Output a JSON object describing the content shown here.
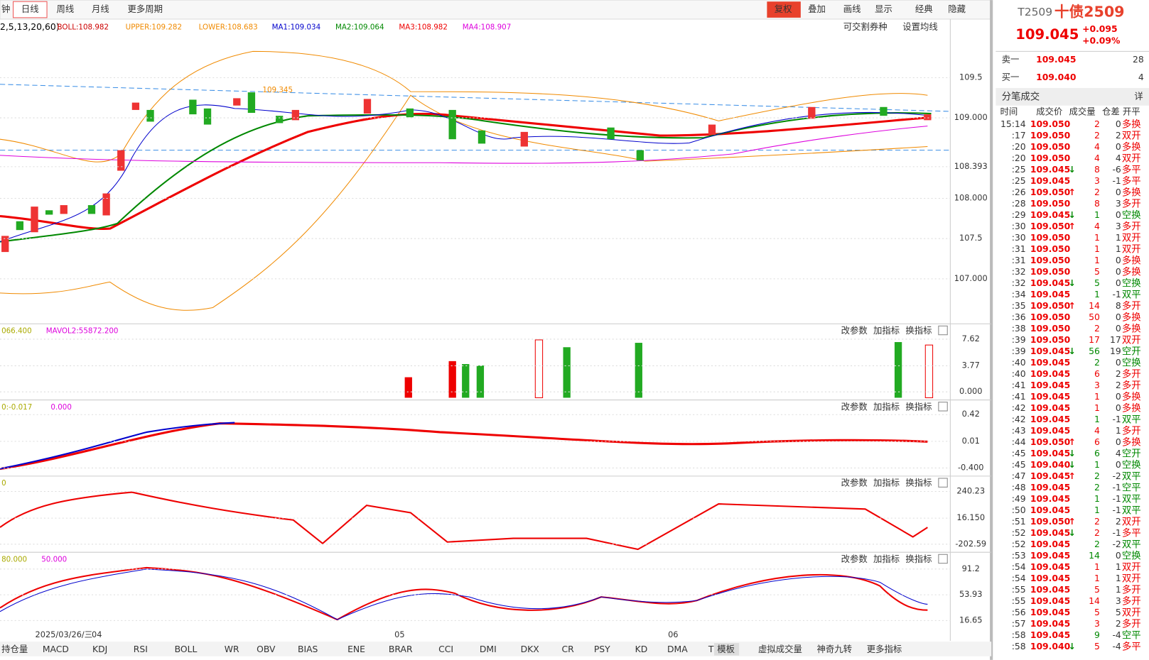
{
  "toolbar": {
    "tabs": [
      "钟",
      "日线",
      "周线",
      "月线",
      "更多周期"
    ],
    "active": 1,
    "right": [
      "复权",
      "叠加",
      "画线",
      "显示",
      "经典",
      "隐藏"
    ]
  },
  "legend": {
    "params": "2,5,13,20,60)",
    "items": [
      {
        "text": "BOLL:108.982",
        "color": "#c00"
      },
      {
        "text": "UPPER:109.282",
        "color": "#f08a00"
      },
      {
        "text": "LOWER:108.683",
        "color": "#f08a00"
      },
      {
        "text": "MA1:109.034",
        "color": "#00c"
      },
      {
        "text": "MA2:109.064",
        "color": "#080"
      },
      {
        "text": "MA3:108.982",
        "color": "#e00"
      },
      {
        "text": "MA4:108.907",
        "color": "#d0d"
      }
    ],
    "links": [
      "可交割券种",
      "设置均线"
    ]
  },
  "price_panel": {
    "yticks": [
      109.5,
      {
        "value": 109,
        "label": "109.000"
      },
      108.393,
      {
        "value": 108,
        "label": "108.000"
      },
      107.5,
      {
        "value": 107,
        "label": "107.000"
      }
    ],
    "ylim": [
      106.46,
      110.19
    ],
    "high_note": "109.345"
  },
  "panels": [
    {
      "legend": [
        "066.400",
        "MAVOL2:55872.200"
      ],
      "yticks": [
        7.62,
        3.77,
        {
          "value": 0,
          "label": "0.000"
        }
      ],
      "ylim": [
        -1.06,
        7.94
      ]
    },
    {
      "legend": [
        "0:-0.017",
        "0.000"
      ],
      "yticks": [
        0.42,
        0.01,
        {
          "value": -0.4,
          "label": "-0.400"
        }
      ],
      "ylim": [
        -0.502,
        0.443
      ]
    },
    {
      "legend": [
        "0"
      ],
      "yticks": [
        240.23,
        {
          "value": 16.15,
          "label": "16.150"
        },
        -202.59
      ],
      "ylim": [
        -258,
        258.7
      ]
    },
    {
      "legend": [
        "80.000",
        "50.000"
      ],
      "yticks": [
        91.2,
        53.93,
        16.65
      ],
      "ylim": [
        6.3,
        96.4
      ]
    }
  ],
  "panel_buttons": [
    "改参数",
    "加指标",
    "换指标"
  ],
  "x_labels": [
    "2025/03/26/三",
    "04",
    "05",
    "06"
  ],
  "bottom_tabs": [
    "持仓量",
    "MACD",
    "KDJ",
    "RSI",
    "BOLL",
    "WR",
    "OBV",
    "BIAS",
    "ENE",
    "BRAR",
    "CCI",
    "DMI",
    "DKX",
    "CR",
    "PSY",
    "KD",
    "DMA",
    "TRIX",
    "虚拟成交量",
    "神奇九转",
    "更多指标",
    "模板"
  ],
  "quote": {
    "code": "T2509",
    "name": "十债2509",
    "price": "109.045",
    "change": "+0.095",
    "pct": "+0.09%",
    "sell": {
      "label": "卖一",
      "price": "109.045",
      "volume": 28
    },
    "buy": {
      "label": "买一",
      "price": "109.040",
      "volume": 4
    },
    "ticks_title": "分笔成交",
    "detail": "详",
    "headers": [
      "时间",
      "成交价",
      "成交量",
      "仓差",
      "开平"
    ],
    "rows": [
      [
        "15:14",
        "109.050",
        "",
        2,
        0,
        "多换"
      ],
      [
        ":17",
        "109.050",
        "",
        2,
        2,
        "双开"
      ],
      [
        ":20",
        "109.050",
        "",
        4,
        0,
        "多换"
      ],
      [
        ":20",
        "109.050",
        "",
        4,
        4,
        "双开"
      ],
      [
        ":25",
        "109.045",
        "↓",
        8,
        -6,
        "多平"
      ],
      [
        ":25",
        "109.045",
        "",
        3,
        -1,
        "多平"
      ],
      [
        ":26",
        "109.050",
        "↑",
        2,
        0,
        "多换"
      ],
      [
        ":28",
        "109.050",
        "",
        8,
        3,
        "多开"
      ],
      [
        ":29",
        "109.045",
        "↓",
        1,
        0,
        "空换"
      ],
      [
        ":30",
        "109.050",
        "↑",
        4,
        3,
        "多开"
      ],
      [
        ":30",
        "109.050",
        "",
        1,
        1,
        "双开"
      ],
      [
        ":31",
        "109.050",
        "",
        1,
        1,
        "双开"
      ],
      [
        ":31",
        "109.050",
        "",
        1,
        0,
        "多换"
      ],
      [
        ":32",
        "109.050",
        "",
        5,
        0,
        "多换"
      ],
      [
        ":32",
        "109.045",
        "↓",
        5,
        0,
        "空换"
      ],
      [
        ":34",
        "109.045",
        "",
        1,
        -1,
        "双平"
      ],
      [
        ":35",
        "109.050",
        "↑",
        14,
        8,
        "多开"
      ],
      [
        ":36",
        "109.050",
        "",
        50,
        0,
        "多换"
      ],
      [
        ":38",
        "109.050",
        "",
        2,
        0,
        "多换"
      ],
      [
        ":39",
        "109.050",
        "",
        17,
        17,
        "双开"
      ],
      [
        ":39",
        "109.045",
        "↓",
        56,
        19,
        "空开"
      ],
      [
        ":40",
        "109.045",
        "",
        2,
        0,
        "空换"
      ],
      [
        ":40",
        "109.045",
        "",
        6,
        2,
        "多开"
      ],
      [
        ":41",
        "109.045",
        "",
        3,
        2,
        "多开"
      ],
      [
        ":41",
        "109.045",
        "",
        1,
        0,
        "多换"
      ],
      [
        ":42",
        "109.045",
        "",
        1,
        0,
        "多换"
      ],
      [
        ":42",
        "109.045",
        "",
        1,
        -1,
        "双平"
      ],
      [
        ":43",
        "109.045",
        "",
        4,
        1,
        "多开"
      ],
      [
        ":44",
        "109.050",
        "↑",
        6,
        0,
        "多换"
      ],
      [
        ":45",
        "109.045",
        "↓",
        6,
        4,
        "空开"
      ],
      [
        ":45",
        "109.040",
        "↓",
        1,
        0,
        "空换"
      ],
      [
        ":47",
        "109.045",
        "↑",
        2,
        -2,
        "双平"
      ],
      [
        ":48",
        "109.045",
        "",
        2,
        -1,
        "空平"
      ],
      [
        ":49",
        "109.045",
        "",
        1,
        -1,
        "双平"
      ],
      [
        ":50",
        "109.045",
        "",
        1,
        -1,
        "双平"
      ],
      [
        ":51",
        "109.050",
        "↑",
        2,
        2,
        "双开"
      ],
      [
        ":52",
        "109.045",
        "↓",
        2,
        -1,
        "多平"
      ],
      [
        ":52",
        "109.045",
        "",
        2,
        -2,
        "双平"
      ],
      [
        ":53",
        "109.045",
        "",
        14,
        0,
        "空换"
      ],
      [
        ":54",
        "109.045",
        "",
        1,
        1,
        "双开"
      ],
      [
        ":54",
        "109.045",
        "",
        1,
        1,
        "双开"
      ],
      [
        ":55",
        "109.045",
        "",
        5,
        1,
        "多开"
      ],
      [
        ":55",
        "109.045",
        "",
        14,
        3,
        "多开"
      ],
      [
        ":56",
        "109.045",
        "",
        5,
        5,
        "双开"
      ],
      [
        ":57",
        "109.045",
        "",
        3,
        2,
        "多开"
      ],
      [
        ":58",
        "109.045",
        "",
        9,
        -4,
        "空平"
      ],
      [
        ":58",
        "109.040",
        "↓",
        5,
        -4,
        "多平"
      ]
    ]
  }
}
